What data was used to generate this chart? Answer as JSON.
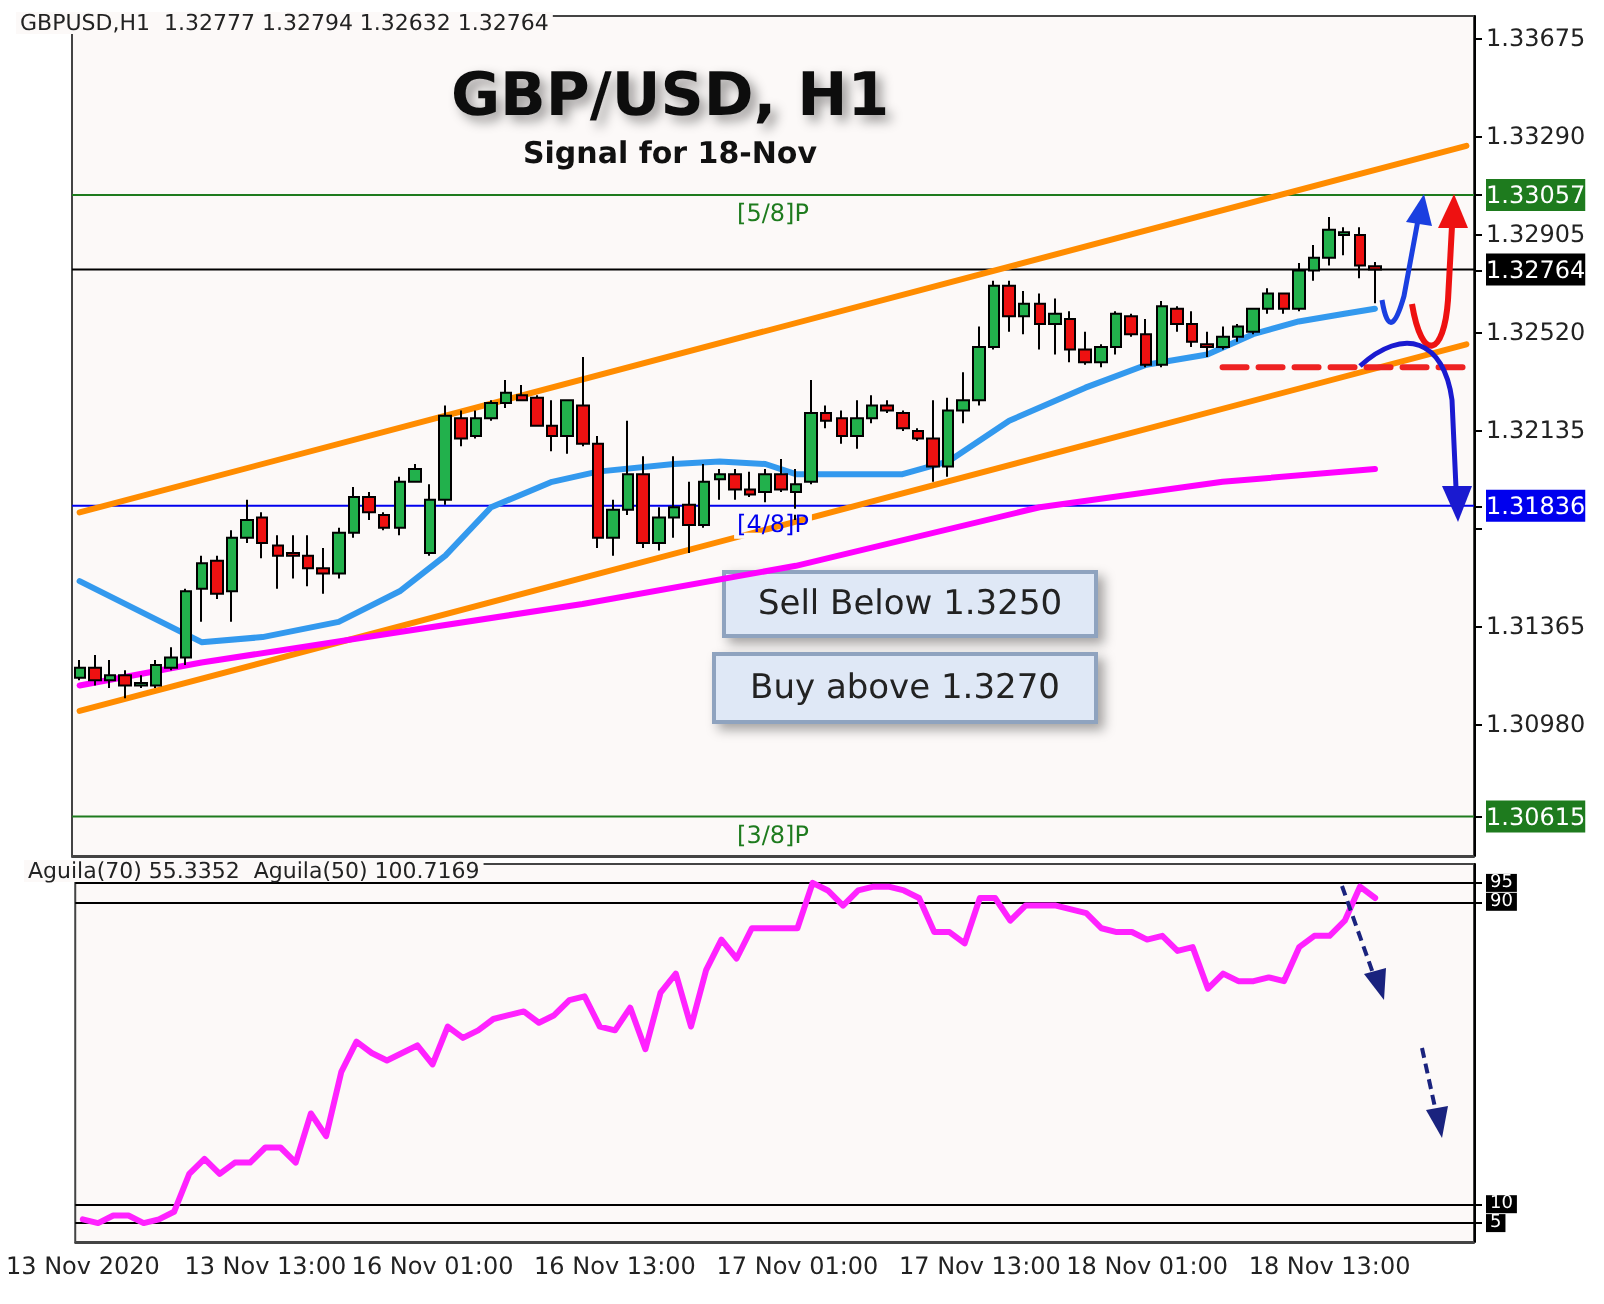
{
  "chart_data": [
    {
      "type": "candlestick",
      "title": "GBP/USD, H1",
      "subtitle": "Signal for 18-Nov",
      "annotations": [
        "GBPUSD,H1  1.32777 1.32794 1.32632 1.32764",
        "Sell Below 1.3250",
        "Buy above 1.3270"
      ],
      "categories": [
        null,
        null,
        null,
        null,
        null,
        null,
        null,
        null,
        null,
        null,
        null,
        null,
        null,
        null,
        null,
        null,
        null,
        null,
        null,
        null,
        null,
        null,
        null,
        null,
        null,
        null,
        null,
        null,
        null,
        null,
        null,
        null,
        null,
        null,
        null,
        null,
        null,
        null,
        null,
        null,
        null,
        null,
        null,
        null,
        null,
        null,
        null,
        null,
        null,
        null,
        null,
        null,
        null,
        null,
        null,
        null,
        null,
        null,
        null,
        null,
        null,
        null,
        null,
        null,
        null,
        null,
        null,
        null,
        null,
        null,
        null,
        null,
        null,
        null,
        null,
        null,
        null,
        null,
        null,
        null,
        null,
        null,
        null,
        null,
        null,
        null,
        null,
        null,
        null,
        null,
        null,
        null
      ],
      "ohlc": [
        [
          1.3116,
          1.3123,
          1.3115,
          1.312
        ],
        [
          1.312,
          1.3125,
          1.3113,
          1.3115
        ],
        [
          1.3115,
          1.3123,
          1.3112,
          1.3117
        ],
        [
          1.3117,
          1.3119,
          1.3108,
          1.3113
        ],
        [
          1.3113,
          1.3117,
          1.3112,
          1.3114
        ],
        [
          1.3113,
          1.3123,
          1.3112,
          1.3121
        ],
        [
          1.312,
          1.3128,
          1.3119,
          1.3124
        ],
        [
          1.3124,
          1.3151,
          1.3121,
          1.315
        ],
        [
          1.3151,
          1.3164,
          1.3138,
          1.3161
        ],
        [
          1.3162,
          1.3164,
          1.3147,
          1.3149
        ],
        [
          1.315,
          1.3174,
          1.3138,
          1.3171
        ],
        [
          1.3171,
          1.3186,
          1.3169,
          1.3178
        ],
        [
          1.3179,
          1.3181,
          1.3163,
          1.3169
        ],
        [
          1.3168,
          1.3172,
          1.3151,
          1.3164
        ],
        [
          1.3165,
          1.3172,
          1.3155,
          1.3164
        ],
        [
          1.3164,
          1.3172,
          1.3152,
          1.3159
        ],
        [
          1.3159,
          1.3167,
          1.3149,
          1.3157
        ],
        [
          1.3157,
          1.3175,
          1.3155,
          1.3173
        ],
        [
          1.3173,
          1.3191,
          1.3171,
          1.3187
        ],
        [
          1.3187,
          1.3189,
          1.3178,
          1.3181
        ],
        [
          1.318,
          1.3181,
          1.3174,
          1.3175
        ],
        [
          1.3175,
          1.3195,
          1.3172,
          1.3193
        ],
        [
          1.3193,
          1.32,
          1.3193,
          1.3198
        ],
        [
          1.3165,
          1.3192,
          1.3164,
          1.3186
        ],
        [
          1.3186,
          1.3223,
          1.3184,
          1.3219
        ],
        [
          1.3218,
          1.3221,
          1.3207,
          1.321
        ],
        [
          1.3211,
          1.3221,
          1.321,
          1.3218
        ],
        [
          1.3218,
          1.3225,
          1.3217,
          1.3224
        ],
        [
          1.3224,
          1.3233,
          1.3222,
          1.3228
        ],
        [
          1.3227,
          1.3231,
          1.3225,
          1.3225
        ],
        [
          1.3226,
          1.3227,
          1.3215,
          1.3215
        ],
        [
          1.3215,
          1.3225,
          1.3205,
          1.3211
        ],
        [
          1.3211,
          1.3225,
          1.3204,
          1.3225
        ],
        [
          1.3223,
          1.3242,
          1.3207,
          1.3208
        ],
        [
          1.3208,
          1.3211,
          1.3167,
          1.3171
        ],
        [
          1.3171,
          1.3186,
          1.3164,
          1.3182
        ],
        [
          1.3182,
          1.3217,
          1.318,
          1.3196
        ],
        [
          1.3196,
          1.3203,
          1.3167,
          1.3169
        ],
        [
          1.3169,
          1.3183,
          1.3166,
          1.3179
        ],
        [
          1.3179,
          1.3203,
          1.3171,
          1.3183
        ],
        [
          1.3184,
          1.3193,
          1.3165,
          1.3176
        ],
        [
          1.3176,
          1.32,
          1.3175,
          1.3193
        ],
        [
          1.3194,
          1.3198,
          1.3186,
          1.3196
        ],
        [
          1.3196,
          1.3198,
          1.3186,
          1.319
        ],
        [
          1.319,
          1.3197,
          1.3187,
          1.3188
        ],
        [
          1.3189,
          1.3198,
          1.3185,
          1.3196
        ],
        [
          1.3196,
          1.3202,
          1.3189,
          1.319
        ],
        [
          1.3189,
          1.3198,
          1.3178,
          1.3192
        ],
        [
          1.3193,
          1.3233,
          1.3192,
          1.322
        ],
        [
          1.322,
          1.3223,
          1.3214,
          1.3217
        ],
        [
          1.3218,
          1.3221,
          1.3208,
          1.3211
        ],
        [
          1.3211,
          1.3225,
          1.3206,
          1.3218
        ],
        [
          1.3218,
          1.3227,
          1.3216,
          1.3223
        ],
        [
          1.3223,
          1.3225,
          1.322,
          1.3221
        ],
        [
          1.322,
          1.3221,
          1.3213,
          1.3214
        ],
        [
          1.3213,
          1.3214,
          1.3209,
          1.321
        ],
        [
          1.321,
          1.3225,
          1.3193,
          1.3199
        ],
        [
          1.3199,
          1.3226,
          1.3195,
          1.3221
        ],
        [
          1.3221,
          1.3236,
          1.3216,
          1.3225
        ],
        [
          1.3225,
          1.3254,
          1.3223,
          1.3246
        ],
        [
          1.3246,
          1.3272,
          1.3245,
          1.327
        ],
        [
          1.327,
          1.3272,
          1.3252,
          1.3258
        ],
        [
          1.3258,
          1.3268,
          1.3251,
          1.3263
        ],
        [
          1.3263,
          1.3267,
          1.3245,
          1.3255
        ],
        [
          1.3255,
          1.3265,
          1.3243,
          1.3259
        ],
        [
          1.3257,
          1.326,
          1.324,
          1.3245
        ],
        [
          1.3245,
          1.3252,
          1.3239,
          1.324
        ],
        [
          1.324,
          1.3247,
          1.3238,
          1.3246
        ],
        [
          1.3246,
          1.326,
          1.3243,
          1.3259
        ],
        [
          1.3258,
          1.3259,
          1.325,
          1.3251
        ],
        [
          1.3251,
          1.3257,
          1.3238,
          1.3239
        ],
        [
          1.3239,
          1.3264,
          1.3238,
          1.3262
        ],
        [
          1.3261,
          1.3262,
          1.3252,
          1.3255
        ],
        [
          1.3255,
          1.326,
          1.3246,
          1.3248
        ],
        [
          1.3247,
          1.3252,
          1.3242,
          1.3246
        ],
        [
          1.3246,
          1.3254,
          1.3245,
          1.325
        ],
        [
          1.325,
          1.3255,
          1.3248,
          1.3254
        ],
        [
          1.3252,
          1.3261,
          1.3251,
          1.3261
        ],
        [
          1.3261,
          1.3269,
          1.3259,
          1.3267
        ],
        [
          1.3267,
          1.3267,
          1.3259,
          1.3261
        ],
        [
          1.3261,
          1.3279,
          1.326,
          1.3276
        ],
        [
          1.3276,
          1.3286,
          1.3272,
          1.3281
        ],
        [
          1.3281,
          1.3297,
          1.3278,
          1.3292
        ],
        [
          1.329,
          1.3293,
          1.3282,
          1.3291
        ],
        [
          1.329,
          1.3293,
          1.3273,
          1.3278
        ],
        [
          1.32777,
          1.32794,
          1.32632,
          1.32764
        ],
        null,
        null,
        null,
        null,
        null,
        null
      ],
      "series": [
        {
          "type": "line",
          "color": "#ff8c00",
          "values": [
            1.3181,
            null,
            null,
            null,
            null,
            null,
            null,
            null,
            null,
            null,
            null,
            null,
            null,
            null,
            null,
            null,
            null,
            null,
            null,
            null,
            null,
            null,
            null,
            null,
            null,
            null,
            null,
            null,
            null,
            null,
            null,
            null,
            null,
            null,
            null,
            null,
            null,
            null,
            null,
            null,
            null,
            null,
            null,
            null,
            null,
            null,
            null,
            null,
            null,
            null,
            null,
            null,
            null,
            null,
            null,
            null,
            null,
            null,
            null,
            null,
            null,
            null,
            null,
            null,
            null,
            null,
            null,
            null,
            null,
            null,
            null,
            null,
            null,
            null,
            null,
            null,
            null,
            null,
            null,
            null,
            null,
            null,
            null,
            null,
            null,
            null,
            null,
            null,
            null,
            null,
            null,
            1.3325
          ]
        },
        {
          "type": "line",
          "color": "#ff8c00",
          "values": [
            1.3103,
            null,
            null,
            null,
            null,
            null,
            null,
            null,
            null,
            null,
            null,
            null,
            null,
            null,
            null,
            null,
            null,
            null,
            null,
            null,
            null,
            null,
            null,
            null,
            null,
            null,
            null,
            null,
            null,
            null,
            null,
            null,
            null,
            null,
            null,
            null,
            null,
            null,
            null,
            null,
            null,
            null,
            null,
            null,
            null,
            null,
            null,
            null,
            null,
            null,
            null,
            null,
            null,
            null,
            null,
            null,
            null,
            null,
            null,
            null,
            null,
            null,
            null,
            null,
            null,
            null,
            null,
            null,
            null,
            null,
            null,
            null,
            null,
            null,
            null,
            null,
            null,
            null,
            null,
            null,
            null,
            null,
            null,
            null,
            null,
            null,
            null,
            null,
            null,
            null,
            null,
            1.3247
          ]
        },
        {
          "type": "line",
          "color": "#ff00ff",
          "values": [
            1.3113,
            null,
            null,
            null,
            null,
            null,
            null,
            null,
            1.3122,
            null,
            null,
            null,
            null,
            null,
            null,
            null,
            null,
            null,
            null,
            null,
            null,
            1.3134,
            null,
            null,
            null,
            null,
            null,
            null,
            null,
            null,
            null,
            null,
            null,
            1.3145,
            null,
            null,
            null,
            null,
            null,
            null,
            null,
            null,
            null,
            null,
            null,
            null,
            null,
            1.316,
            null,
            null,
            null,
            null,
            null,
            null,
            null,
            null,
            null,
            null,
            null,
            null,
            null,
            null,
            null,
            1.3183,
            null,
            null,
            null,
            null,
            null,
            null,
            null,
            null,
            null,
            null,
            null,
            1.3193,
            null,
            null,
            null,
            null,
            null,
            null,
            null,
            null,
            null,
            1.3198,
            null,
            null,
            null,
            null,
            null,
            null
          ]
        },
        {
          "type": "line",
          "color": "#3399ee",
          "values": [
            1.3154,
            null,
            null,
            null,
            null,
            null,
            null,
            null,
            1.313,
            null,
            null,
            null,
            1.3132,
            null,
            null,
            null,
            null,
            1.3138,
            null,
            null,
            null,
            1.315,
            null,
            null,
            1.3164,
            null,
            null,
            1.3183,
            null,
            null,
            null,
            1.3193,
            null,
            null,
            1.3197,
            null,
            null,
            null,
            null,
            1.32,
            null,
            null,
            1.3201,
            null,
            null,
            1.32,
            null,
            1.3196,
            null,
            null,
            null,
            null,
            null,
            null,
            1.3196,
            null,
            null,
            1.3201,
            null,
            null,
            null,
            1.3217,
            null,
            null,
            null,
            null,
            1.323,
            null,
            null,
            null,
            1.3239,
            null,
            null,
            null,
            1.3243,
            null,
            null,
            1.3251,
            null,
            null,
            1.3256,
            null,
            null,
            1.3259,
            null,
            1.3261,
            null,
            null,
            null,
            null,
            null,
            null
          ]
        },
        {
          "type": "line",
          "color": "#ee2222",
          "line_style": "dashed",
          "values": [
            null,
            null,
            null,
            null,
            null,
            null,
            null,
            null,
            null,
            null,
            null,
            null,
            null,
            null,
            null,
            null,
            null,
            null,
            null,
            null,
            null,
            null,
            null,
            null,
            null,
            null,
            null,
            null,
            null,
            null,
            null,
            null,
            null,
            null,
            null,
            null,
            null,
            null,
            null,
            null,
            null,
            null,
            null,
            null,
            null,
            null,
            null,
            null,
            null,
            null,
            null,
            null,
            null,
            null,
            null,
            null,
            null,
            null,
            null,
            null,
            null,
            null,
            null,
            null,
            null,
            null,
            null,
            null,
            null,
            null,
            null,
            null,
            null,
            null,
            null,
            1.3238,
            null,
            null,
            null,
            null,
            null,
            null,
            null,
            null,
            null,
            null,
            null,
            null,
            null,
            null,
            null,
            1.3238
          ]
        }
      ],
      "ylim": [
        1.3046,
        1.3376
      ],
      "yticks": [
        1.30615,
        {
          "value": 1.3098,
          "label": "1.30980"
        },
        1.31365,
        {
          "value": 1.3175,
          "label": null
        },
        1.31836,
        1.32135,
        {
          "value": 1.3252,
          "label": "1.32520"
        },
        1.32764,
        1.32905,
        1.33057,
        {
          "value": 1.3329,
          "label": "1.33290"
        },
        1.33675
      ],
      "ref_lines": [
        {
          "axis": "y",
          "value": 1.33057,
          "label": "[5/8]P",
          "color": "#1e7b1e"
        },
        {
          "axis": "y",
          "value": 1.32764,
          "label": null,
          "color": "#000000"
        },
        {
          "axis": "y",
          "value": 1.31836,
          "label": "[4/8]P",
          "color": "#0000ee"
        },
        {
          "axis": "y",
          "value": 1.30615,
          "label": "[3/8]P",
          "color": "#1e7b1e"
        }
      ],
      "tick_labels": "y",
      "grid": false
    },
    {
      "type": "line",
      "annotations": [
        "Aguila(70) 55.3352  Aguila(50) 100.7169"
      ],
      "categories": [
        "13 Nov 2020",
        null,
        null,
        null,
        null,
        null,
        null,
        null,
        null,
        null,
        null,
        null,
        "13 Nov 13:00",
        null,
        null,
        null,
        null,
        null,
        null,
        null,
        null,
        null,
        null,
        "16 Nov 01:00",
        null,
        null,
        null,
        null,
        null,
        null,
        null,
        null,
        null,
        null,
        null,
        "16 Nov 13:00",
        null,
        null,
        null,
        null,
        null,
        null,
        null,
        null,
        null,
        null,
        null,
        "17 Nov 01:00",
        null,
        null,
        null,
        null,
        null,
        null,
        null,
        null,
        null,
        null,
        null,
        "17 Nov 13:00",
        null,
        null,
        null,
        null,
        null,
        null,
        null,
        null,
        null,
        null,
        "18 Nov 01:00",
        null,
        null,
        null,
        null,
        null,
        null,
        null,
        null,
        null,
        null,
        null,
        "18 Nov 13:00",
        null,
        null,
        null,
        null,
        null,
        null,
        null,
        null,
        null
      ],
      "series": [
        {
          "color": "#ff22ff",
          "values": [
            6,
            5,
            7,
            7,
            5,
            6,
            8,
            18,
            22,
            18,
            21,
            21,
            25,
            25,
            21,
            34,
            28,
            45,
            53,
            50,
            48,
            50,
            52,
            47,
            57,
            54,
            56,
            59,
            60,
            61,
            58,
            60,
            64,
            65,
            57,
            56,
            62,
            51,
            66,
            71,
            57,
            72,
            80,
            75,
            83,
            83,
            83,
            83,
            95,
            93,
            89,
            93,
            94,
            94,
            93,
            91,
            82,
            82,
            79,
            91,
            91,
            85,
            89,
            89,
            89,
            88,
            87,
            83,
            82,
            82,
            80,
            81,
            77,
            78,
            67,
            71,
            69,
            69,
            70,
            69,
            78,
            81,
            81,
            85,
            94,
            91,
            null,
            null,
            null,
            null,
            null,
            null
          ]
        }
      ],
      "ylim": [
        0,
        100
      ],
      "yticks": [
        5,
        10,
        90,
        95
      ],
      "grid": "y"
    }
  ]
}
